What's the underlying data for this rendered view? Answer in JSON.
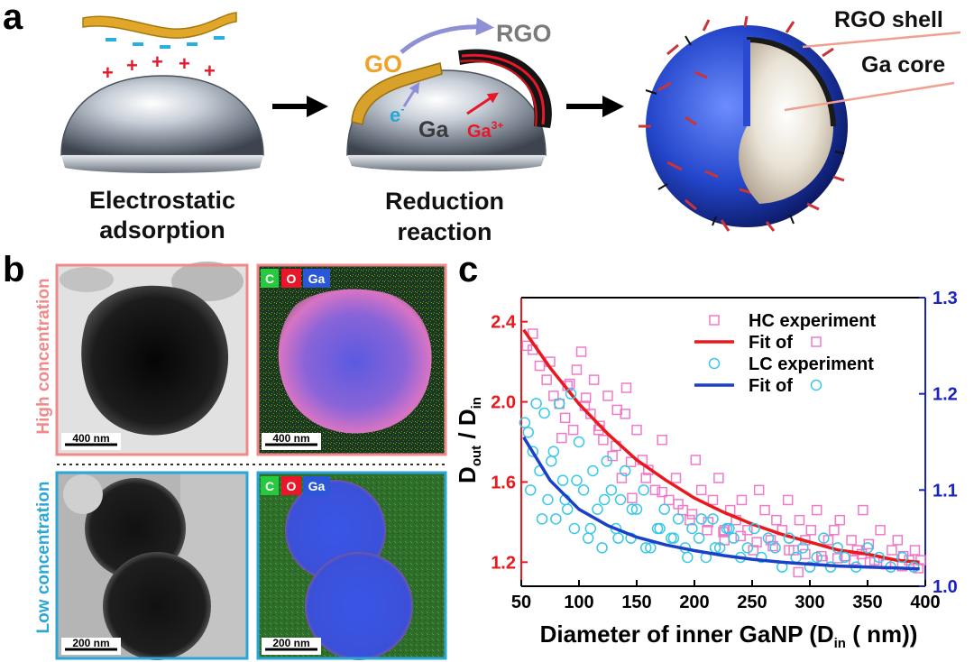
{
  "panel_a": {
    "label": "a",
    "step1": {
      "line1": "Electrostatic",
      "line2": "adsorption",
      "plus": "+",
      "minus": "-"
    },
    "step2": {
      "line1": "Reduction",
      "line2": "reaction",
      "go": "GO",
      "rgo": "RGO",
      "electron": "e",
      "electron_sup": "-",
      "ga": "Ga",
      "ga_ion": "Ga",
      "ga_ion_sup": "3+"
    },
    "step3": {
      "shell_label": "RGO shell",
      "core_label": "Ga core"
    }
  },
  "panel_b": {
    "label": "b",
    "high_label": "High concentration",
    "low_label": "Low concentration",
    "scale_400": "400 nm",
    "scale_200": "200 nm",
    "legend": {
      "c": "C",
      "o": "O",
      "ga": "Ga"
    },
    "colors": {
      "high_border": "#f08a8a",
      "low_border": "#2aa6d8",
      "c": "#27c93f",
      "o": "#e8182a",
      "ga": "#2a57d8"
    }
  },
  "panel_c": {
    "label": "c",
    "chart_data": {
      "type": "scatter",
      "title": "",
      "xlabel": "Diameter of inner GaNP (D",
      "xlabel_sub": "in",
      "xlabel_tail": " ( nm))",
      "ylabel_parts": [
        "D",
        "out",
        " / D",
        "in"
      ],
      "xlim": [
        50,
        400
      ],
      "ylim_left": [
        1.08,
        2.52
      ],
      "ylim_right": [
        1.0,
        1.3
      ],
      "xticks": [
        50,
        100,
        150,
        200,
        250,
        300,
        350,
        400
      ],
      "yticks_left": [
        "1.2",
        "1.6",
        "2.0",
        "2.4"
      ],
      "yticks_right": [
        "1.0",
        "1.1",
        "1.2",
        "1.3"
      ],
      "legend": [
        {
          "label": "HC experiment"
        },
        {
          "label": "Fit of"
        },
        {
          "label": "LC experiment"
        },
        {
          "label": "Fit of"
        }
      ],
      "colors": {
        "hc": "#f07ac8",
        "hc_fit": "#e8181c",
        "lc": "#38c8e8",
        "lc_fit": "#1a3fc8",
        "left_axis": "#e8181c",
        "right_axis": "#1a22c0"
      },
      "series": [
        {
          "name": "HC experiment",
          "axis": "left",
          "marker": "square",
          "x": [
            55,
            60,
            66,
            72,
            78,
            83,
            88,
            92,
            95,
            98,
            102,
            106,
            110,
            113,
            117,
            121,
            125,
            129,
            133,
            137,
            141,
            146,
            150,
            155,
            160,
            166,
            172,
            178,
            184,
            190,
            196,
            201,
            206,
            211,
            216,
            221,
            226,
            231,
            236,
            241,
            246,
            251,
            256,
            261,
            266,
            271,
            276,
            281,
            286,
            291,
            296,
            301,
            306,
            311,
            316,
            321,
            326,
            331,
            336,
            341,
            346,
            351,
            356,
            361,
            366,
            371,
            376,
            381,
            386,
            391,
            396,
            60,
            75,
            90,
            105,
            118,
            132,
            145,
            158,
            172,
            186,
            198,
            212,
            226,
            240,
            254,
            268,
            282,
            296,
            310,
            324,
            338,
            352,
            366,
            380,
            394,
            85,
            140,
            225,
            290,
            345
          ],
          "y": [
            2.28,
            2.26,
            2.18,
            2.11,
            2.03,
            1.99,
            1.92,
            2.09,
            1.86,
            2.16,
            2.25,
            2.02,
            1.94,
            2.11,
            1.86,
            1.81,
            2.03,
            1.73,
            1.96,
            1.62,
            2.07,
            1.52,
            1.86,
            1.71,
            1.66,
            1.56,
            1.81,
            1.51,
            1.62,
            1.46,
            1.41,
            1.71,
            1.56,
            1.36,
            1.51,
            1.62,
            1.31,
            1.46,
            1.41,
            1.51,
            1.36,
            1.26,
            1.56,
            1.46,
            1.31,
            1.41,
            1.36,
            1.51,
            1.26,
            1.41,
            1.31,
            1.36,
            1.46,
            1.21,
            1.31,
            1.36,
            1.41,
            1.23,
            1.31,
            1.26,
            1.46,
            1.29,
            1.21,
            1.36,
            1.19,
            1.26,
            1.31,
            1.23,
            1.21,
            1.26,
            1.21,
            2.34,
            2.2,
            2.08,
            1.98,
            1.88,
            1.78,
            1.7,
            1.62,
            1.55,
            1.49,
            1.44,
            1.4,
            1.36,
            1.33,
            1.3,
            1.28,
            1.26,
            1.24,
            1.23,
            1.22,
            1.21,
            1.2,
            1.19,
            1.18,
            1.17,
            1.82,
            1.94,
            1.35,
            1.15,
            1.24
          ]
        },
        {
          "name": "HC fit",
          "axis": "left",
          "marker": "line",
          "x": [
            52,
            75,
            100,
            125,
            150,
            175,
            200,
            225,
            250,
            275,
            300,
            325,
            350,
            375,
            395
          ],
          "y": [
            2.36,
            2.17,
            1.99,
            1.84,
            1.71,
            1.61,
            1.52,
            1.45,
            1.39,
            1.34,
            1.3,
            1.26,
            1.24,
            1.21,
            1.2
          ]
        },
        {
          "name": "LC experiment",
          "axis": "right",
          "marker": "circle",
          "x": [
            53,
            56,
            60,
            63,
            66,
            70,
            73,
            76,
            80,
            83,
            86,
            90,
            93,
            96,
            100,
            104,
            108,
            112,
            116,
            120,
            124,
            128,
            132,
            136,
            140,
            145,
            150,
            156,
            162,
            168,
            174,
            180,
            186,
            192,
            198,
            204,
            210,
            216,
            222,
            228,
            234,
            240,
            246,
            252,
            258,
            264,
            270,
            276,
            282,
            288,
            294,
            300,
            306,
            312,
            318,
            324,
            330,
            340,
            350,
            360,
            370,
            380,
            390,
            58,
            68,
            78,
            88,
            98,
            110,
            122,
            134,
            146,
            158,
            170,
            182,
            194,
            206,
            218,
            230
          ],
          "y": [
            1.17,
            1.16,
            1.14,
            1.19,
            1.12,
            1.18,
            1.09,
            1.13,
            1.07,
            1.19,
            1.11,
            1.08,
            1.2,
            1.06,
            1.15,
            1.1,
            1.05,
            1.12,
            1.08,
            1.04,
            1.13,
            1.1,
            1.06,
            1.09,
            1.12,
            1.05,
            1.08,
            1.1,
            1.04,
            1.06,
            1.08,
            1.05,
            1.07,
            1.04,
            1.06,
            1.05,
            1.03,
            1.07,
            1.04,
            1.06,
            1.05,
            1.03,
            1.04,
            1.06,
            1.03,
            1.05,
            1.04,
            1.02,
            1.05,
            1.03,
            1.04,
            1.02,
            1.03,
            1.05,
            1.02,
            1.04,
            1.03,
            1.02,
            1.04,
            1.03,
            1.02,
            1.03,
            1.02,
            1.1,
            1.07,
            1.14,
            1.09,
            1.11,
            1.06,
            1.09,
            1.05,
            1.08,
            1.04,
            1.06,
            1.05,
            1.03,
            1.07,
            1.04,
            1.06
          ]
        },
        {
          "name": "LC fit",
          "axis": "right",
          "marker": "line",
          "x": [
            52,
            75,
            100,
            125,
            150,
            175,
            200,
            225,
            250,
            275,
            300,
            325,
            350,
            375,
            395
          ],
          "y": [
            1.155,
            1.11,
            1.08,
            1.063,
            1.051,
            1.043,
            1.037,
            1.032,
            1.028,
            1.025,
            1.023,
            1.021,
            1.02,
            1.019,
            1.018
          ]
        }
      ]
    }
  }
}
